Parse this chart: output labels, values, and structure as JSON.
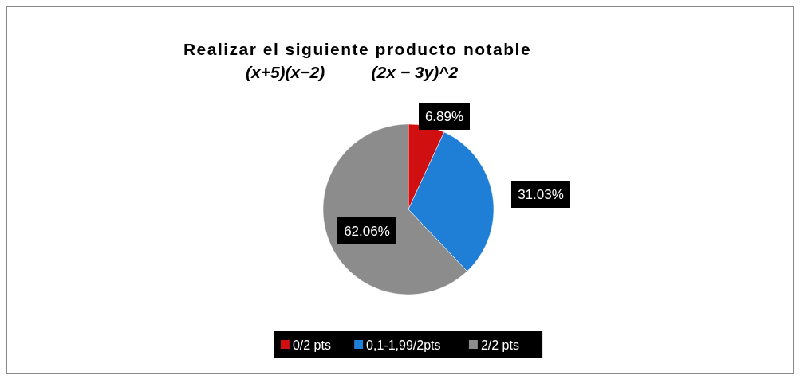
{
  "chart_data": {
    "type": "pie",
    "title": "Realizar el siguiente producto notable",
    "subtitle": "(x+5)(x−2)          (2x − 3y)^2",
    "categories": [
      "0/2 pts",
      "0,1-1,99/2pts",
      "2/2 pts"
    ],
    "values": [
      6.89,
      31.03,
      62.06
    ],
    "colors": [
      "#d01010",
      "#1f7fd6",
      "#8c8c8c"
    ],
    "value_labels": [
      "6.89%",
      "31.03%",
      "62.06%"
    ],
    "legend": "bottom"
  }
}
